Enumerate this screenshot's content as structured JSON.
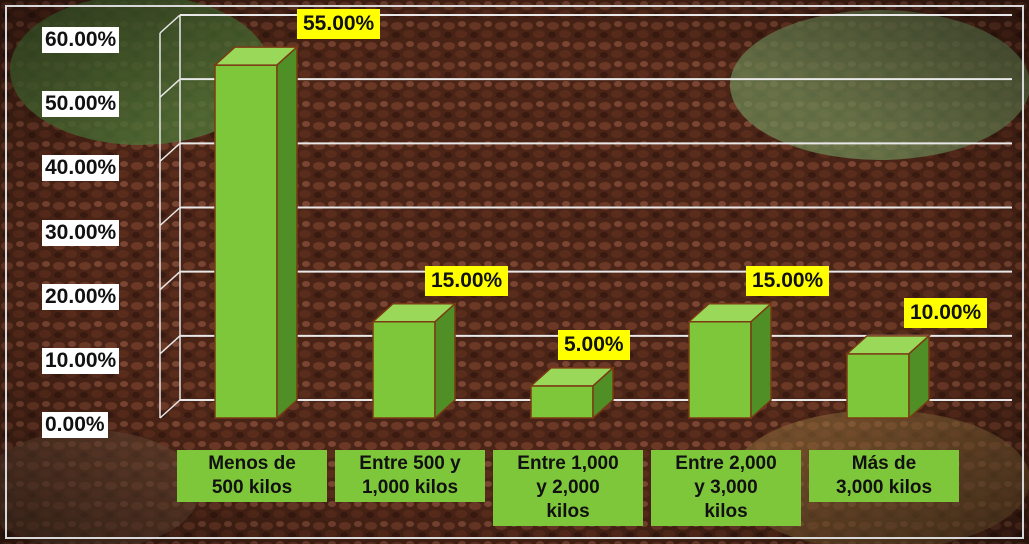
{
  "chart_data": {
    "type": "bar",
    "categories": [
      "Menos de\n500 kilos",
      "Entre 500 y\n1,000 kilos",
      "Entre 1,000\ny 2,000\nkilos",
      "Entre 2,000\ny 3,000\nkilos",
      "Más de\n3,000 kilos"
    ],
    "values": [
      55.0,
      15.0,
      5.0,
      15.0,
      10.0
    ],
    "data_labels": [
      "55.00%",
      "15.00%",
      "5.00%",
      "15.00%",
      "10.00%"
    ],
    "y_ticks": [
      "0.00%",
      "10.00%",
      "20.00%",
      "30.00%",
      "40.00%",
      "50.00%",
      "60.00%"
    ],
    "ylim": [
      0,
      60
    ],
    "title": "",
    "xlabel": "",
    "ylabel": "",
    "grid": true,
    "style": "3d-column"
  },
  "colors": {
    "bar_front": "#7ec63a",
    "bar_top": "#9ad85a",
    "bar_side": "#4f8f25",
    "bar_edge": "#7a3a14",
    "gridline": "#e8e8e8",
    "data_label_bg": "#ffff00",
    "tick_label_bg": "#ffffff",
    "category_label_bg": "#7ec63a"
  }
}
